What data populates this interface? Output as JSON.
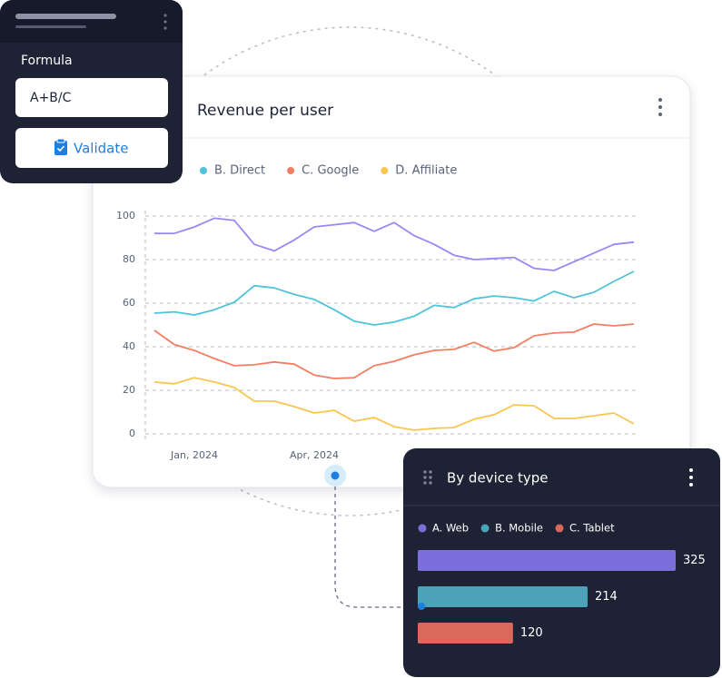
{
  "formula_panel": {
    "label": "Formula",
    "input": "A+B/C",
    "button": "Validate"
  },
  "chart_data": [
    {
      "type": "line",
      "title": "Revenue per user",
      "categories": [
        null,
        null,
        "Jan, 2024",
        null,
        null,
        null,
        null,
        null,
        "Apr, 2024",
        null,
        null,
        null,
        null,
        null,
        null,
        null,
        null,
        null,
        null,
        null,
        null,
        null,
        null,
        null,
        null
      ],
      "series": [
        {
          "color": "#9b87f5",
          "values": [
            92,
            92,
            95,
            99,
            98,
            87,
            84,
            89,
            95,
            96,
            97,
            93,
            97,
            91,
            87,
            82,
            80,
            80.5,
            81,
            76,
            75,
            79,
            83,
            87,
            88
          ]
        },
        {
          "name": "B. Direct",
          "color": "#4fc3d9",
          "values": [
            55.4,
            56,
            54.6,
            57,
            60.4,
            68,
            67,
            64,
            61.7,
            57,
            51.7,
            50,
            51.3,
            54,
            59,
            58,
            62,
            63.3,
            62.5,
            61,
            65.4,
            62.5,
            65,
            70,
            74.6
          ]
        },
        {
          "name": "C. Google",
          "color": "#f37e62",
          "values": [
            47.5,
            41,
            38.3,
            34.6,
            31.3,
            31.7,
            33,
            32,
            27,
            25.4,
            25.8,
            31.3,
            33.3,
            36.3,
            38.3,
            38.8,
            42,
            38,
            39.6,
            45,
            46.3,
            46.7,
            50.4,
            49.6,
            50.4
          ]
        },
        {
          "name": "D. Affiliate",
          "color": "#f8c651",
          "values": [
            23.8,
            23,
            25.8,
            23.8,
            21.3,
            15,
            15,
            12.5,
            9.6,
            10.8,
            5.8,
            7.5,
            3.3,
            1.7,
            2.5,
            2.9,
            6.7,
            8.8,
            13.3,
            12.9,
            7.1,
            7.1,
            8.3,
            9.6,
            4.6
          ]
        }
      ],
      "ylim": [
        0,
        100
      ],
      "yticks": [
        0,
        20,
        40,
        60,
        80,
        100
      ],
      "grid": true
    },
    {
      "type": "bar",
      "orientation": "horizontal",
      "title": "By device type",
      "categories": [
        "A. Web",
        "B. Mobile",
        "C. Tablet"
      ],
      "values": [
        325,
        214,
        120
      ],
      "colors": [
        "#7c6fdc",
        "#4aa3b8",
        "#d9695a"
      ]
    }
  ]
}
